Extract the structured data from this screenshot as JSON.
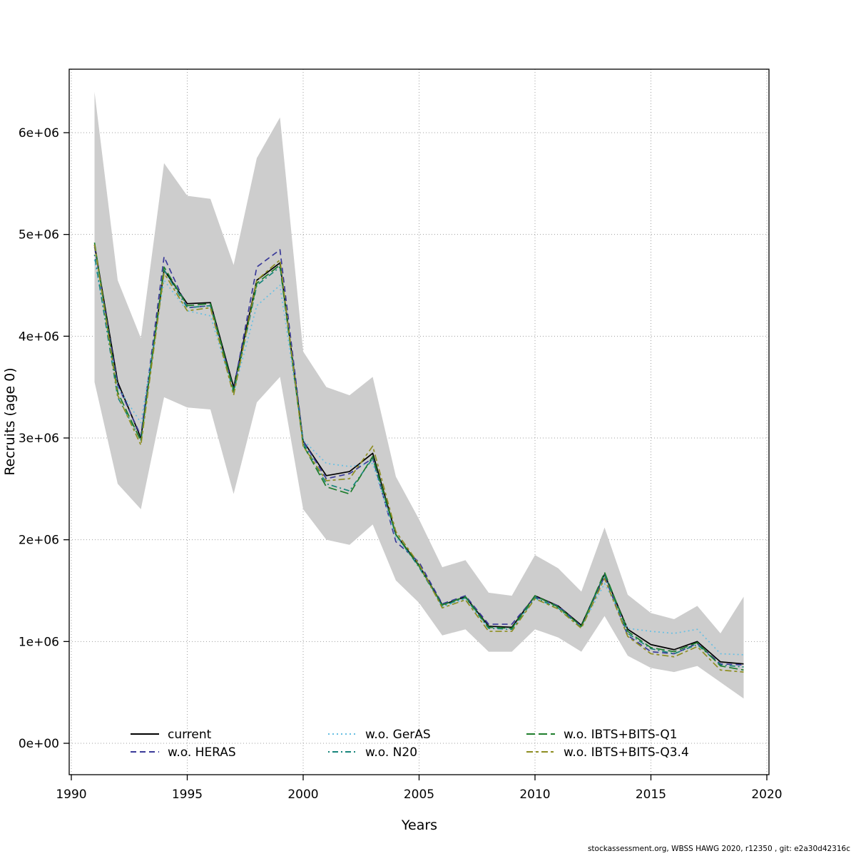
{
  "footer": "stockassessment.org, WBSS HAWG 2020, r12350 , git: e2a30d42316c",
  "chart_data": {
    "type": "line",
    "title": "",
    "xlabel": "Years",
    "ylabel": "Recruits (age 0)",
    "xlim": [
      1989.8,
      2020.2
    ],
    "ylim": [
      -300000,
      6650000
    ],
    "grid": true,
    "x_ticks": [
      1990,
      1995,
      2000,
      2005,
      2010,
      2015,
      2020
    ],
    "x_tick_labels": [
      "1990",
      "1995",
      "2000",
      "2005",
      "2010",
      "2015",
      "2020"
    ],
    "y_ticks": [
      0,
      1000000,
      2000000,
      3000000,
      4000000,
      5000000,
      6000000
    ],
    "y_tick_labels": [
      "0e+00",
      "1e+06",
      "2e+06",
      "3e+06",
      "4e+06",
      "5e+06",
      "6e+06"
    ],
    "x": [
      1991,
      1992,
      1993,
      1994,
      1995,
      1996,
      1997,
      1998,
      1999,
      2000,
      2001,
      2002,
      2003,
      2004,
      2005,
      2006,
      2007,
      2008,
      2009,
      2010,
      2011,
      2012,
      2013,
      2014,
      2015,
      2016,
      2017,
      2018,
      2019
    ],
    "band": {
      "name": "confidence-interval-current",
      "color": "#cdcdcd",
      "lower": [
        3550000,
        2550000,
        2300000,
        3400000,
        3300000,
        3280000,
        2450000,
        3350000,
        3600000,
        2300000,
        2000000,
        1950000,
        2150000,
        1600000,
        1380000,
        1060000,
        1120000,
        900000,
        900000,
        1120000,
        1040000,
        900000,
        1250000,
        860000,
        740000,
        700000,
        760000,
        600000,
        440000
      ],
      "upper": [
        6400000,
        4550000,
        3980000,
        5700000,
        5380000,
        5350000,
        4700000,
        5750000,
        6150000,
        3850000,
        3500000,
        3420000,
        3600000,
        2620000,
        2200000,
        1730000,
        1800000,
        1480000,
        1450000,
        1850000,
        1720000,
        1490000,
        2120000,
        1460000,
        1280000,
        1220000,
        1350000,
        1080000,
        1440000
      ]
    },
    "series": [
      {
        "name": "current",
        "color": "#000000",
        "linetype": "solid",
        "values": [
          4900000,
          3550000,
          3000000,
          4650000,
          4320000,
          4330000,
          3500000,
          4550000,
          4720000,
          2970000,
          2630000,
          2670000,
          2850000,
          2050000,
          1750000,
          1360000,
          1440000,
          1150000,
          1140000,
          1450000,
          1350000,
          1160000,
          1660000,
          1120000,
          970000,
          920000,
          1000000,
          800000,
          780000
        ]
      },
      {
        "name": "w.o. HERAS",
        "color": "#3a3a99",
        "linetype": "dashed",
        "values": [
          4880000,
          3520000,
          3020000,
          4780000,
          4280000,
          4300000,
          3480000,
          4680000,
          4850000,
          2970000,
          2600000,
          2650000,
          2800000,
          1980000,
          1780000,
          1370000,
          1450000,
          1170000,
          1170000,
          1440000,
          1350000,
          1150000,
          1640000,
          1060000,
          900000,
          880000,
          980000,
          780000,
          770000
        ]
      },
      {
        "name": "w.o. GerAS",
        "color": "#66bfe3",
        "linetype": "dotted",
        "values": [
          4750000,
          3500000,
          3150000,
          4550000,
          4250000,
          4200000,
          3450000,
          4300000,
          4500000,
          2980000,
          2750000,
          2720000,
          2750000,
          2020000,
          1750000,
          1340000,
          1420000,
          1140000,
          1130000,
          1420000,
          1330000,
          1140000,
          1570000,
          1130000,
          1100000,
          1080000,
          1120000,
          880000,
          870000
        ]
      },
      {
        "name": "w.o. N20",
        "color": "#17857b",
        "linetype": "dotdash",
        "values": [
          4800000,
          3400000,
          2980000,
          4650000,
          4280000,
          4300000,
          3450000,
          4500000,
          4680000,
          2950000,
          2550000,
          2480000,
          2800000,
          2050000,
          1730000,
          1350000,
          1430000,
          1130000,
          1120000,
          1430000,
          1330000,
          1140000,
          1660000,
          1080000,
          930000,
          880000,
          970000,
          770000,
          750000
        ]
      },
      {
        "name": "w.o. IBTS+BITS-Q1",
        "color": "#1e7d2c",
        "linetype": "longdash",
        "values": [
          4920000,
          3450000,
          2970000,
          4680000,
          4300000,
          4320000,
          3470000,
          4520000,
          4700000,
          2930000,
          2520000,
          2450000,
          2820000,
          2050000,
          1740000,
          1360000,
          1440000,
          1140000,
          1130000,
          1450000,
          1340000,
          1150000,
          1680000,
          1100000,
          940000,
          900000,
          990000,
          760000,
          720000
        ]
      },
      {
        "name": "w.o. IBTS+BITS-Q3.4",
        "color": "#8e8e22",
        "linetype": "twodash",
        "values": [
          4900000,
          3420000,
          2930000,
          4620000,
          4250000,
          4280000,
          3420000,
          4550000,
          4750000,
          2920000,
          2580000,
          2600000,
          2920000,
          2080000,
          1760000,
          1330000,
          1410000,
          1100000,
          1100000,
          1420000,
          1320000,
          1130000,
          1620000,
          1050000,
          880000,
          850000,
          950000,
          720000,
          700000
        ]
      }
    ],
    "legend": {
      "position": "bottom-inside",
      "columns": 3,
      "entries": [
        "current",
        "w.o. HERAS",
        "w.o. GerAS",
        "w.o. N20",
        "w.o. IBTS+BITS-Q1",
        "w.o. IBTS+BITS-Q3.4"
      ]
    }
  }
}
